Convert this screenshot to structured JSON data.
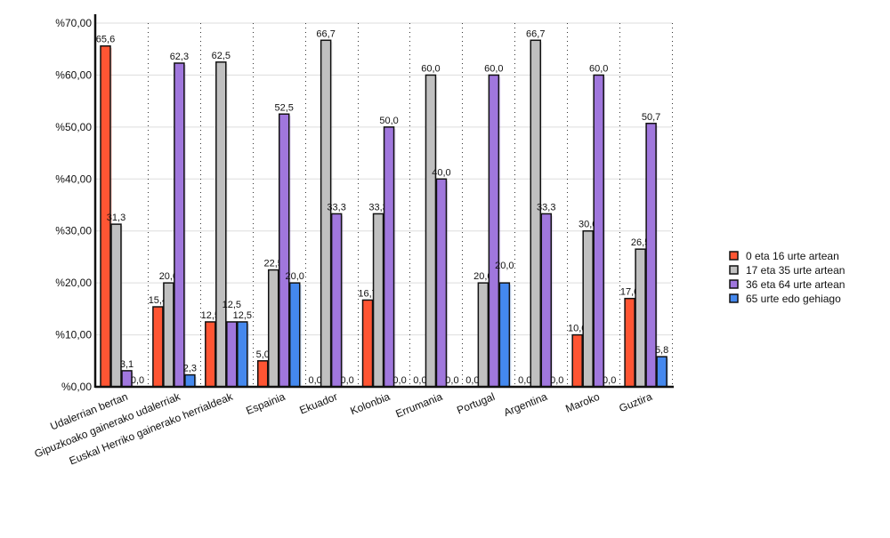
{
  "chart_data": {
    "type": "bar",
    "title": "",
    "xlabel": "",
    "ylabel": "",
    "ylim": [
      0,
      70
    ],
    "yticks": [
      "%0,00",
      "%10,00",
      "%20,00",
      "%30,00",
      "%40,00",
      "%50,00",
      "%60,00",
      "%70,00"
    ],
    "grid": true,
    "legend_position": "right",
    "categories": [
      "Udalerrian bertan",
      "Gipuzkoako gainerako udalerriak",
      "Euskal Herriko gainerako herrialdeak",
      "Espainia",
      "Ekuador",
      "Kolonbia",
      "Errumania",
      "Portugal",
      "Argentina",
      "Maroko",
      "Guztira"
    ],
    "series": [
      {
        "name": "0 eta 16 urte artean",
        "color": "#ff5533",
        "values": [
          65.6,
          15.4,
          12.5,
          5.0,
          0.0,
          16.7,
          0.0,
          0.0,
          0.0,
          10.0,
          17.0
        ]
      },
      {
        "name": "17 eta 35 urte artean",
        "color": "#c0c0c0",
        "values": [
          31.3,
          20.0,
          62.5,
          22.5,
          66.7,
          33.3,
          60.0,
          20.0,
          66.7,
          30.0,
          26.5
        ]
      },
      {
        "name": "36 eta 64 urte artean",
        "color": "#a077dd",
        "values": [
          3.1,
          62.3,
          12.5,
          52.5,
          33.3,
          50.0,
          40.0,
          60.0,
          33.3,
          60.0,
          50.7
        ]
      },
      {
        "name": "65 urte edo gehiago",
        "color": "#4488ee",
        "values": [
          0.0,
          2.3,
          12.5,
          20.0,
          0.0,
          0.0,
          0.0,
          20.0,
          0.0,
          0.0,
          5.8
        ]
      }
    ]
  }
}
